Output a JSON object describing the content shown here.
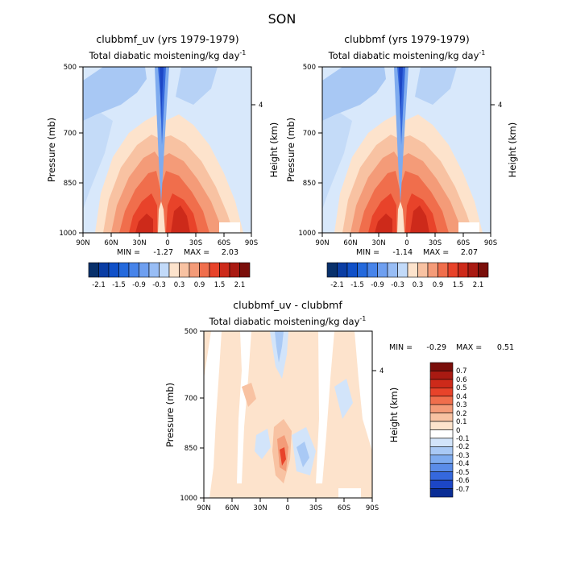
{
  "figure": {
    "season": "SON"
  },
  "chart_data": [
    {
      "type": "heatmap",
      "title": "clubbmf_uv (yrs 1979-1979)",
      "subtitle": "Total diabatic moistening/kg day",
      "subtitle_exponent": "-1",
      "ylabel": "Pressure (mb)",
      "ylabel_right": "Height (km)",
      "x_ticks": [
        "90N",
        "60N",
        "30N",
        "0",
        "30S",
        "60S",
        "90S"
      ],
      "y_ticks": [
        "500",
        "700",
        "850",
        "1000"
      ],
      "y_right_ticks": [
        "4"
      ],
      "xlim": [
        90,
        -90
      ],
      "ylim": [
        1000,
        500
      ],
      "stats": {
        "min_label": "MIN =",
        "min": "-1.27",
        "max_label": "MAX =",
        "max": "2.03"
      },
      "colorbar": {
        "orientation": "horizontal",
        "labels": [
          "-2.1",
          "-1.5",
          "-0.9",
          "-0.3",
          "0.3",
          "0.9",
          "1.5",
          "2.1"
        ]
      }
    },
    {
      "type": "heatmap",
      "title": "clubbmf (yrs 1979-1979)",
      "subtitle": "Total diabatic moistening/kg day",
      "subtitle_exponent": "-1",
      "ylabel": "Pressure (mb)",
      "ylabel_right": "Height (km)",
      "x_ticks": [
        "90N",
        "60N",
        "30N",
        "0",
        "30S",
        "60S",
        "90S"
      ],
      "y_ticks": [
        "500",
        "700",
        "850",
        "1000"
      ],
      "y_right_ticks": [
        "4"
      ],
      "xlim": [
        90,
        -90
      ],
      "ylim": [
        1000,
        500
      ],
      "stats": {
        "min_label": "MIN =",
        "min": "-1.14",
        "max_label": "MAX =",
        "max": "2.07"
      },
      "colorbar": {
        "orientation": "horizontal",
        "labels": [
          "-2.1",
          "-1.5",
          "-0.9",
          "-0.3",
          "0.3",
          "0.9",
          "1.5",
          "2.1"
        ]
      }
    },
    {
      "type": "heatmap",
      "title": "clubbmf_uv - clubbmf",
      "subtitle": "Total diabatic moistening/kg day",
      "subtitle_exponent": "-1",
      "ylabel": "Pressure (mb)",
      "ylabel_right": "Height (km)",
      "x_ticks": [
        "90N",
        "60N",
        "30N",
        "0",
        "30S",
        "60S",
        "90S"
      ],
      "y_ticks": [
        "500",
        "700",
        "850",
        "1000"
      ],
      "y_right_ticks": [
        "4"
      ],
      "xlim": [
        90,
        -90
      ],
      "ylim": [
        1000,
        500
      ],
      "stats": {
        "min_label": "MIN =",
        "min": "-0.29",
        "max_label": "MAX =",
        "max": "0.51"
      },
      "colorbar": {
        "orientation": "vertical",
        "labels": [
          "0.7",
          "0.6",
          "0.5",
          "0.4",
          "0.3",
          "0.2",
          "0.1",
          "0",
          "-0.1",
          "-0.2",
          "-0.3",
          "-0.4",
          "-0.5",
          "-0.6",
          "-0.7"
        ]
      }
    }
  ],
  "palette": {
    "main_colorbar": [
      "#08306b",
      "#0a3da4",
      "#1050c8",
      "#2469dc",
      "#4784ea",
      "#6e9ff0",
      "#98bdf5",
      "#c2daf9",
      "#fde3cc",
      "#f8c2a2",
      "#f49b78",
      "#f06e4c",
      "#e8432a",
      "#cd2a1a",
      "#a91a12",
      "#7a0e0a"
    ],
    "diff_colorbar": [
      "#7a0e0a",
      "#a91a12",
      "#cd2a1a",
      "#e8432a",
      "#f06e4c",
      "#f49b78",
      "#f8c2a2",
      "#fde3cc",
      "#ffffff",
      "#d2e4fa",
      "#a9c9f5",
      "#7eabef",
      "#5a8ce8",
      "#3568dd",
      "#1c46c6",
      "#0a2d95"
    ],
    "background_fill": "#d8e8fb"
  }
}
